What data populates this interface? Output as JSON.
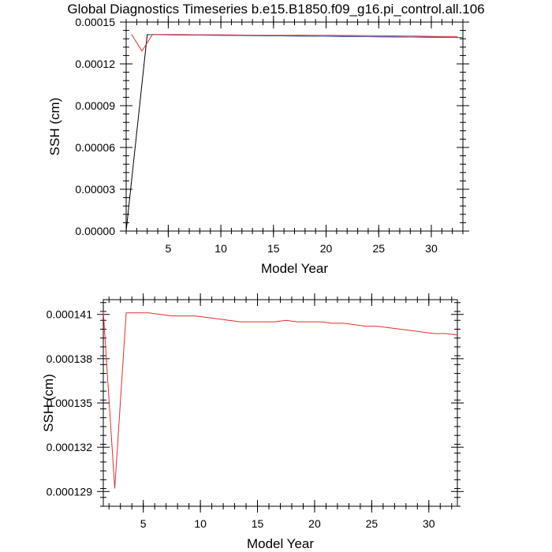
{
  "figure": {
    "title": "Global Diagnostics Timeseries b.e15.B1850.f09_g16.pi_control.all.106"
  },
  "chart_data": [
    {
      "type": "line",
      "xlabel": "Model Year",
      "ylabel": "SSH (cm)",
      "xlim": [
        1,
        33
      ],
      "ylim": [
        0.0,
        0.00015
      ],
      "xticks": [
        5,
        10,
        15,
        20,
        25,
        30
      ],
      "xtick_labels": [
        "5",
        "10",
        "15",
        "20",
        "25",
        "30"
      ],
      "yticks": [
        0.0,
        3e-05,
        6e-05,
        9e-05,
        0.00012,
        0.00015
      ],
      "ytick_labels": [
        "0.00000",
        "0.00003",
        "0.00006",
        "0.00009",
        "0.00012",
        "0.00015"
      ],
      "grid": false,
      "series": [
        {
          "color": "#000000",
          "x": [
            1,
            3,
            3.05,
            33
          ],
          "y": [
            0.0,
            0.000141,
            0.000141,
            0.0001389
          ]
        },
        {
          "color": "#4466cc",
          "x": [
            3.05,
            33
          ],
          "y": [
            0.000141,
            0.0001389
          ]
        },
        {
          "color": "#e0302a",
          "x": [
            1.5,
            2.5,
            3.5,
            4.5,
            5.5,
            6.5,
            7.5,
            8.5,
            9.5,
            10.5,
            11.5,
            12.5,
            13.5,
            14.5,
            15.5,
            16.5,
            17.5,
            18.5,
            19.5,
            20.5,
            21.5,
            22.5,
            23.5,
            24.5,
            25.5,
            26.5,
            27.5,
            28.5,
            29.5,
            30.5,
            31.5,
            32.5
          ],
          "y": [
            0.0001412,
            0.0001292,
            0.0001411,
            0.0001411,
            0.0001411,
            0.000141,
            0.0001409,
            0.0001409,
            0.0001409,
            0.0001408,
            0.0001407,
            0.0001406,
            0.0001405,
            0.0001405,
            0.0001405,
            0.0001405,
            0.0001406,
            0.0001405,
            0.0001405,
            0.0001405,
            0.0001404,
            0.0001404,
            0.0001403,
            0.0001402,
            0.0001402,
            0.0001401,
            0.00014,
            0.0001399,
            0.0001398,
            0.0001397,
            0.0001397,
            0.0001396
          ]
        }
      ]
    },
    {
      "type": "line",
      "xlabel": "Model Year",
      "ylabel": "SSH (cm)",
      "xlim": [
        1.5,
        32.5
      ],
      "ylim": [
        0.000128,
        0.000142
      ],
      "xticks": [
        5,
        10,
        15,
        20,
        25,
        30
      ],
      "xtick_labels": [
        "5",
        "10",
        "15",
        "20",
        "25",
        "30"
      ],
      "yticks": [
        0.000129,
        0.000132,
        0.000135,
        0.000138,
        0.000141
      ],
      "ytick_labels": [
        "0.000129",
        "0.000132",
        "0.000135",
        "0.000138",
        "0.000141"
      ],
      "grid": false,
      "series": [
        {
          "color": "#e0302a",
          "x": [
            1.5,
            2.5,
            3.5,
            4.5,
            5.5,
            6.5,
            7.5,
            8.5,
            9.5,
            10.5,
            11.5,
            12.5,
            13.5,
            14.5,
            15.5,
            16.5,
            17.5,
            18.5,
            19.5,
            20.5,
            21.5,
            22.5,
            23.5,
            24.5,
            25.5,
            26.5,
            27.5,
            28.5,
            29.5,
            30.5,
            31.5,
            32.5
          ],
          "y": [
            0.0001412,
            0.0001292,
            0.0001411,
            0.0001411,
            0.0001411,
            0.000141,
            0.0001409,
            0.0001409,
            0.0001409,
            0.0001408,
            0.0001407,
            0.0001406,
            0.0001405,
            0.0001405,
            0.0001405,
            0.0001405,
            0.0001406,
            0.0001405,
            0.0001405,
            0.0001405,
            0.0001404,
            0.0001404,
            0.0001403,
            0.0001402,
            0.0001402,
            0.0001401,
            0.00014,
            0.0001399,
            0.0001398,
            0.0001397,
            0.0001397,
            0.0001396
          ]
        }
      ]
    }
  ]
}
